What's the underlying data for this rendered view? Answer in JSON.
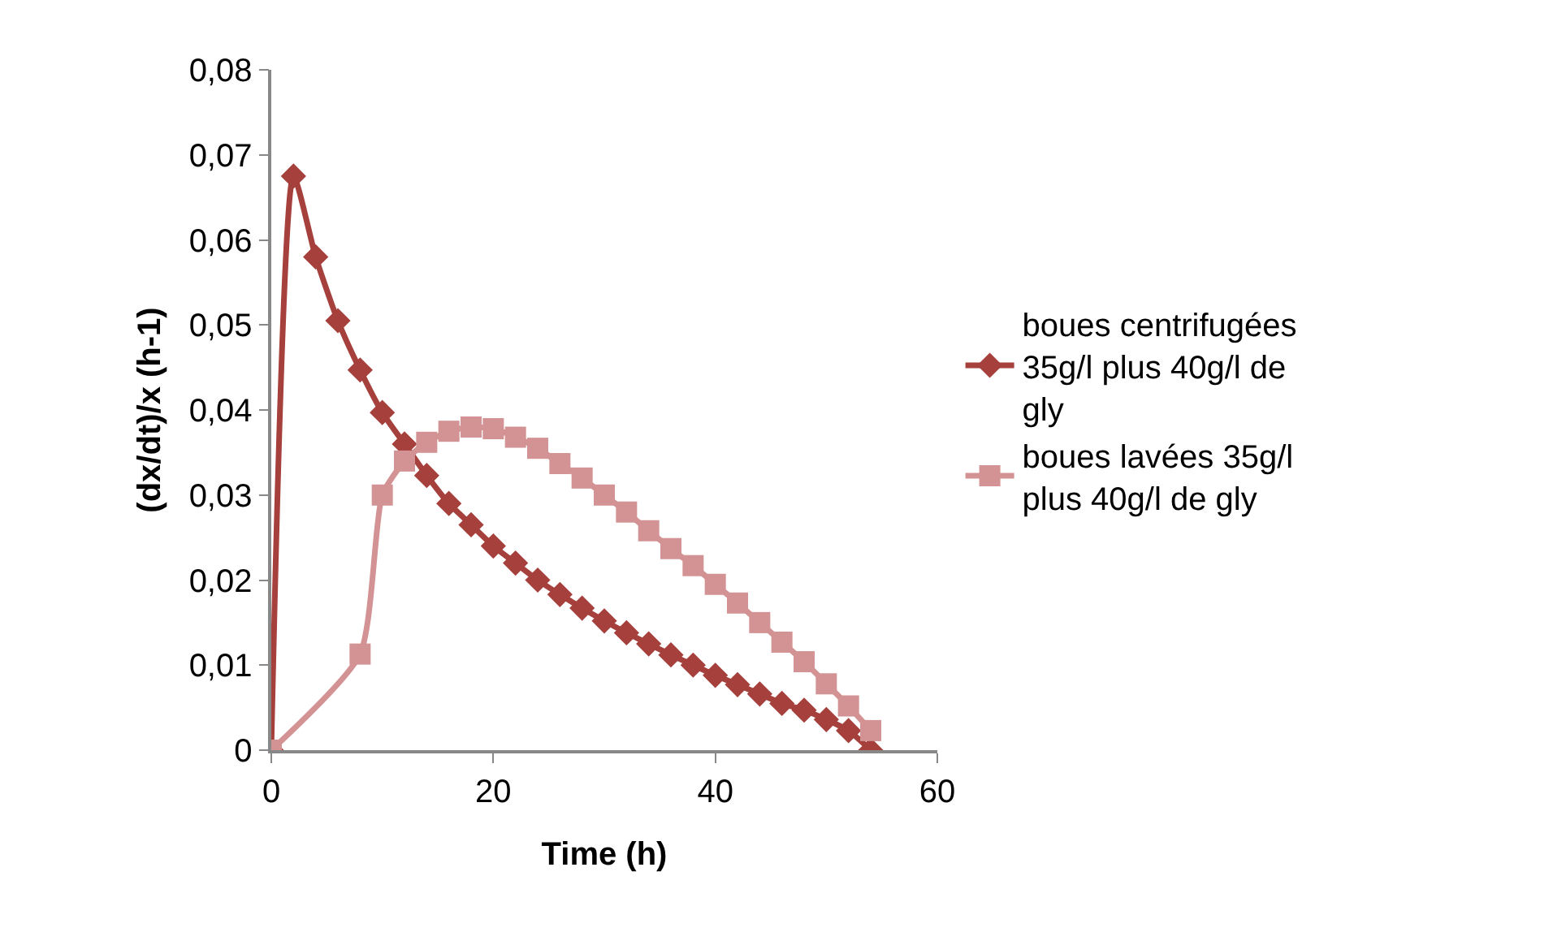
{
  "chart_data": {
    "type": "line",
    "xlabel": "Time (h)",
    "ylabel": "(dx/dt)/x (h-1)",
    "xlim": [
      0,
      60
    ],
    "xticks": [
      0,
      20,
      40,
      60
    ],
    "ylim": [
      0,
      0.08
    ],
    "yticks": [
      {
        "value": 0,
        "label": "0"
      },
      {
        "value": 0.01,
        "label": "0,01"
      },
      {
        "value": 0.02,
        "label": "0,02"
      },
      {
        "value": 0.03,
        "label": "0,03"
      },
      {
        "value": 0.04,
        "label": "0,04"
      },
      {
        "value": 0.05,
        "label": "0,05"
      },
      {
        "value": 0.06,
        "label": "0,06"
      },
      {
        "value": 0.07,
        "label": "0,07"
      },
      {
        "value": 0.08,
        "label": "0,08"
      }
    ],
    "grid": false,
    "legend": "right",
    "series": [
      {
        "name": "boues centrifugées 35g/l plus 40g/l de gly",
        "color": "#a5403c",
        "marker": "diamond",
        "x": [
          0,
          2,
          4,
          6,
          8,
          10,
          12,
          14,
          16,
          18,
          20,
          22,
          24,
          26,
          28,
          30,
          32,
          34,
          36,
          38,
          40,
          42,
          44,
          46,
          48,
          50,
          52,
          54
        ],
        "values": [
          0,
          0.0675,
          0.058,
          0.0505,
          0.0447,
          0.0397,
          0.036,
          0.0323,
          0.029,
          0.0265,
          0.024,
          0.022,
          0.02,
          0.0183,
          0.0167,
          0.0152,
          0.0138,
          0.0125,
          0.0112,
          0.01,
          0.0088,
          0.0077,
          0.0066,
          0.0055,
          0.0047,
          0.0036,
          0.0023,
          0
        ]
      },
      {
        "name": "boues lavées 35g/l plus 40g/l de gly",
        "color": "#d39293",
        "marker": "square",
        "x": [
          0,
          8,
          10,
          12,
          14,
          16,
          18,
          20,
          22,
          24,
          26,
          28,
          30,
          32,
          34,
          36,
          38,
          40,
          42,
          44,
          46,
          48,
          50,
          52,
          54
        ],
        "values": [
          0,
          0.0113,
          0.03,
          0.034,
          0.0362,
          0.0375,
          0.038,
          0.0378,
          0.0368,
          0.0355,
          0.0337,
          0.032,
          0.03,
          0.028,
          0.0258,
          0.0237,
          0.0217,
          0.0195,
          0.0173,
          0.015,
          0.0127,
          0.0104,
          0.0078,
          0.0052,
          0.0023
        ]
      }
    ]
  }
}
